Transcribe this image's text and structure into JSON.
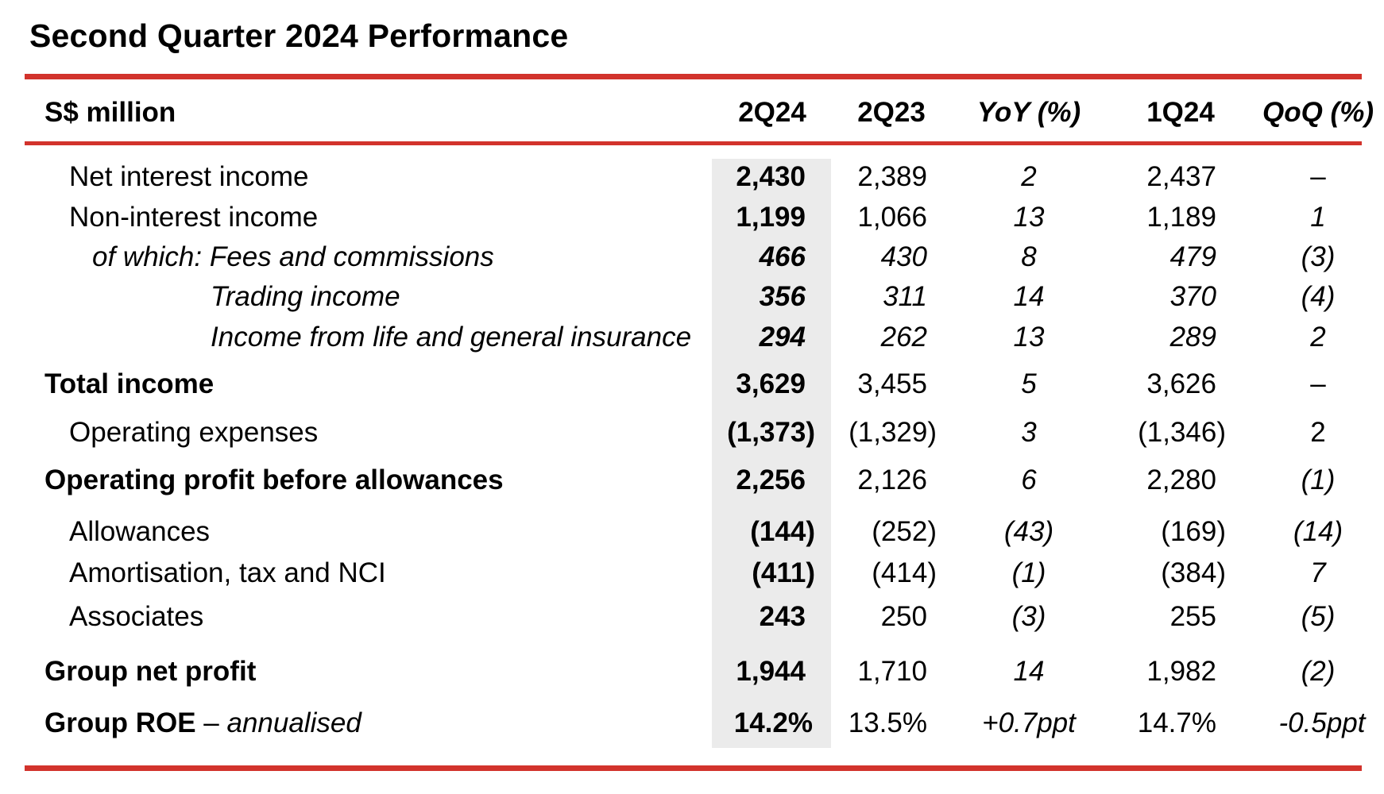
{
  "title": "Second Quarter 2024 Performance",
  "header": {
    "label": "S$ million",
    "col1": "2Q24",
    "col2": "2Q23",
    "col3": "YoY (%)",
    "col4": "1Q24",
    "col5": "QoQ (%)"
  },
  "rows": [
    {
      "label": "Net interest income",
      "v1": "2,430",
      "v2": "2,389",
      "v3": "2",
      "v4": "2,437",
      "v5": "–"
    },
    {
      "label": "Non-interest income",
      "v1": "1,199",
      "v2": "1,066",
      "v3": "13",
      "v4": "1,189",
      "v5": "1"
    },
    {
      "label": "of which: Fees and commissions",
      "v1": "466",
      "v2": "430",
      "v3": "8",
      "v4": "479",
      "v5": "(3)"
    },
    {
      "label": "Trading income",
      "v1": "356",
      "v2": "311",
      "v3": "14",
      "v4": "370",
      "v5": "(4)"
    },
    {
      "label": "Income from life and general insurance",
      "v1": "294",
      "v2": "262",
      "v3": "13",
      "v4": "289",
      "v5": "2"
    },
    {
      "label": "Total income",
      "v1": "3,629",
      "v2": "3,455",
      "v3": "5",
      "v4": "3,626",
      "v5": "–"
    },
    {
      "label": "Operating expenses",
      "v1": "(1,373)",
      "v2": "(1,329)",
      "v3": "3",
      "v4": "(1,346)",
      "v5": "2"
    },
    {
      "label": "Operating profit before allowances",
      "v1": "2,256",
      "v2": "2,126",
      "v3": "6",
      "v4": "2,280",
      "v5": "(1)"
    },
    {
      "label": "Allowances",
      "v1": "(144)",
      "v2": "(252)",
      "v3": "(43)",
      "v4": "(169)",
      "v5": "(14)"
    },
    {
      "label": "Amortisation, tax and NCI",
      "v1": "(411)",
      "v2": "(414)",
      "v3": "(1)",
      "v4": "(384)",
      "v5": "7"
    },
    {
      "label": "Associates",
      "v1": "243",
      "v2": "250",
      "v3": "(3)",
      "v4": "255",
      "v5": "(5)"
    },
    {
      "label": "Group net profit",
      "v1": "1,944",
      "v2": "1,710",
      "v3": "14",
      "v4": "1,982",
      "v5": "(2)"
    },
    {
      "label": "Group ROE",
      "label_suffix": " – ",
      "label_italic": "annualised",
      "v1": "14.2%",
      "v2": "13.5%",
      "v3": "+0.7ppt",
      "v4": "14.7%",
      "v5": "-0.5ppt"
    }
  ],
  "colors": {
    "accent_rule": "#d2332c",
    "highlight_column": "#ebebeb"
  }
}
